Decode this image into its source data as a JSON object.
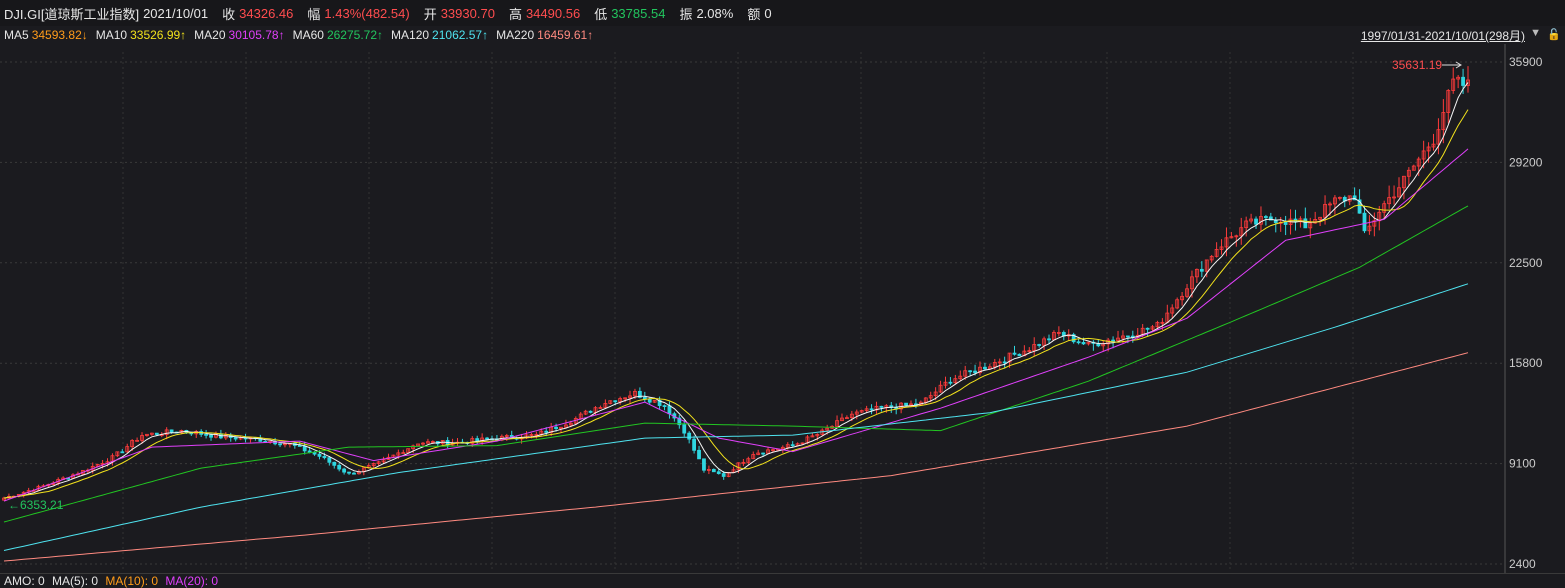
{
  "header": {
    "symbol": "DJI.GI[道琼斯工业指数]",
    "date": "2021/10/01",
    "close_label": "收",
    "close": "34326.46",
    "change_label": "幅",
    "change": "1.43%(482.54)",
    "open_label": "开",
    "open": "33930.70",
    "high_label": "高",
    "high": "34490.56",
    "low_label": "低",
    "low": "33785.54",
    "amp_label": "振",
    "amp": "2.08%",
    "vol_label": "额",
    "vol": "0"
  },
  "ma_legend": {
    "ma5_label": "MA5",
    "ma5": "34593.82↓",
    "ma10_label": "MA10",
    "ma10": "33526.99↑",
    "ma20_label": "MA20",
    "ma20": "30105.78↑",
    "ma60_label": "MA60",
    "ma60": "26275.72↑",
    "ma120_label": "MA120",
    "ma120": "21062.57↑",
    "ma220_label": "MA220",
    "ma220": "16459.61↑"
  },
  "range_text": "1997/01/31-2021/10/01(298月)",
  "range_arrow_icon": "triangle-down-icon",
  "lock_icon": "lock-icon",
  "bottom": {
    "amo_label": "AMO: 0",
    "ma5_label": "MA(5): 0",
    "ma10_label": "MA(10): 0",
    "ma20_label": "MA(20): 0"
  },
  "colors": {
    "up": "#ff3b3b",
    "down": "#2fd6e0",
    "ma5": "#f5f5f5",
    "ma10": "#f2e21c",
    "ma20": "#e040fb",
    "ma60": "#22c522",
    "ma120": "#4fe3ef",
    "ma220": "#ff8a80"
  },
  "chart_data": {
    "type": "candlestick",
    "y_ticks": [
      "35900",
      "29200",
      "22500",
      "15800",
      "9100",
      "2400"
    ],
    "y_tick_values": [
      35900,
      29200,
      22500,
      15800,
      9100,
      2400
    ],
    "ylim": [
      2400,
      35900
    ],
    "max_label": "35631.19",
    "min_label": "6353.21",
    "grid": true,
    "months": 298,
    "close_series": [
      {
        "i": 0,
        "v": 6800
      },
      {
        "i": 8,
        "v": 7600
      },
      {
        "i": 16,
        "v": 8600
      },
      {
        "i": 22,
        "v": 9500
      },
      {
        "i": 28,
        "v": 11000
      },
      {
        "i": 36,
        "v": 11300
      },
      {
        "i": 44,
        "v": 10900
      },
      {
        "i": 52,
        "v": 10700
      },
      {
        "i": 58,
        "v": 10400
      },
      {
        "i": 64,
        "v": 9600
      },
      {
        "i": 70,
        "v": 8400
      },
      {
        "i": 76,
        "v": 9100
      },
      {
        "i": 84,
        "v": 10500
      },
      {
        "i": 92,
        "v": 10500
      },
      {
        "i": 100,
        "v": 10800
      },
      {
        "i": 108,
        "v": 11000
      },
      {
        "i": 116,
        "v": 12100
      },
      {
        "i": 122,
        "v": 13200
      },
      {
        "i": 128,
        "v": 13800
      },
      {
        "i": 134,
        "v": 13000
      },
      {
        "i": 138,
        "v": 11300
      },
      {
        "i": 142,
        "v": 8700
      },
      {
        "i": 146,
        "v": 8300
      },
      {
        "i": 152,
        "v": 9800
      },
      {
        "i": 160,
        "v": 10300
      },
      {
        "i": 166,
        "v": 11200
      },
      {
        "i": 172,
        "v": 12400
      },
      {
        "i": 178,
        "v": 12800
      },
      {
        "i": 186,
        "v": 13100
      },
      {
        "i": 192,
        "v": 14700
      },
      {
        "i": 200,
        "v": 15700
      },
      {
        "i": 208,
        "v": 16800
      },
      {
        "i": 214,
        "v": 17800
      },
      {
        "i": 220,
        "v": 17000
      },
      {
        "i": 228,
        "v": 17700
      },
      {
        "i": 234,
        "v": 18300
      },
      {
        "i": 240,
        "v": 21000
      },
      {
        "i": 246,
        "v": 23500
      },
      {
        "i": 252,
        "v": 25000
      },
      {
        "i": 258,
        "v": 25500
      },
      {
        "i": 264,
        "v": 25000
      },
      {
        "i": 270,
        "v": 26600
      },
      {
        "i": 274,
        "v": 27000
      },
      {
        "i": 276,
        "v": 24300
      },
      {
        "i": 279,
        "v": 26000
      },
      {
        "i": 284,
        "v": 28000
      },
      {
        "i": 290,
        "v": 30800
      },
      {
        "i": 294,
        "v": 34500
      },
      {
        "i": 297,
        "v": 34326
      }
    ],
    "ma_series": [
      {
        "name": "MA20",
        "points": [
          {
            "i": 0,
            "v": 6600
          },
          {
            "i": 30,
            "v": 10200
          },
          {
            "i": 60,
            "v": 10600
          },
          {
            "i": 75,
            "v": 9300
          },
          {
            "i": 100,
            "v": 10600
          },
          {
            "i": 130,
            "v": 13200
          },
          {
            "i": 145,
            "v": 10800
          },
          {
            "i": 160,
            "v": 9900
          },
          {
            "i": 190,
            "v": 12800
          },
          {
            "i": 220,
            "v": 16200
          },
          {
            "i": 240,
            "v": 18800
          },
          {
            "i": 260,
            "v": 24000
          },
          {
            "i": 280,
            "v": 25400
          },
          {
            "i": 297,
            "v": 30100
          }
        ]
      },
      {
        "name": "MA60",
        "points": [
          {
            "i": 0,
            "v": 5200
          },
          {
            "i": 40,
            "v": 8800
          },
          {
            "i": 70,
            "v": 10200
          },
          {
            "i": 100,
            "v": 10300
          },
          {
            "i": 130,
            "v": 11800
          },
          {
            "i": 160,
            "v": 11600
          },
          {
            "i": 190,
            "v": 11300
          },
          {
            "i": 220,
            "v": 14600
          },
          {
            "i": 250,
            "v": 18700
          },
          {
            "i": 275,
            "v": 22200
          },
          {
            "i": 297,
            "v": 26300
          }
        ]
      },
      {
        "name": "MA120",
        "points": [
          {
            "i": 0,
            "v": 3300
          },
          {
            "i": 40,
            "v": 6200
          },
          {
            "i": 80,
            "v": 8500
          },
          {
            "i": 130,
            "v": 10800
          },
          {
            "i": 160,
            "v": 11000
          },
          {
            "i": 200,
            "v": 12500
          },
          {
            "i": 240,
            "v": 15200
          },
          {
            "i": 270,
            "v": 18200
          },
          {
            "i": 297,
            "v": 21100
          }
        ]
      },
      {
        "name": "MA220",
        "points": [
          {
            "i": 0,
            "v": 2600
          },
          {
            "i": 60,
            "v": 4300
          },
          {
            "i": 120,
            "v": 6200
          },
          {
            "i": 180,
            "v": 8300
          },
          {
            "i": 240,
            "v": 11600
          },
          {
            "i": 297,
            "v": 16500
          }
        ]
      }
    ]
  }
}
